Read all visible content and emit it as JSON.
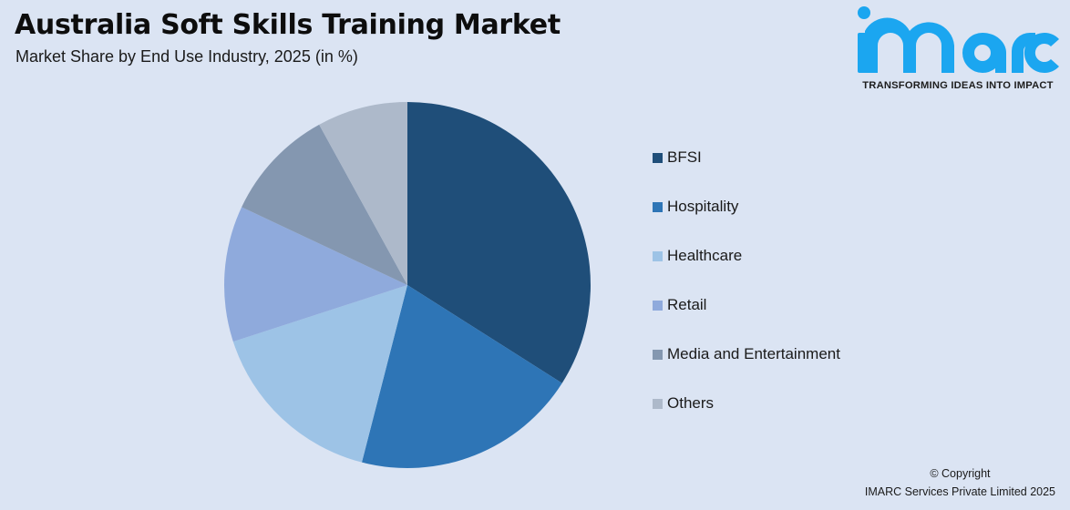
{
  "header": {
    "title": "Australia Soft Skills Training Market",
    "subtitle": "Market Share by End Use Industry, 2025 (in %)"
  },
  "logo": {
    "brand": "imarc",
    "tagline": "TRANSFORMING IDEAS INTO IMPACT",
    "color": "#1ba6f0"
  },
  "chart_data": {
    "type": "pie",
    "title": "Australia Soft Skills Training Market",
    "subtitle": "Market Share by End Use Industry, 2025 (in %)",
    "categories": [
      "BFSI",
      "Hospitality",
      "Healthcare",
      "Retail",
      "Media and Entertainment",
      "Others"
    ],
    "values": [
      34,
      20,
      16,
      12,
      10,
      8
    ],
    "colors": [
      "#1f4e79",
      "#2e75b6",
      "#9dc3e6",
      "#8faadc",
      "#8497b0",
      "#adb9ca"
    ],
    "start_angle_deg": 0,
    "direction": "clockwise",
    "legend_position": "right",
    "data_labels": false
  },
  "legend": {
    "items": [
      {
        "label": "BFSI",
        "color": "#1f4e79"
      },
      {
        "label": "Hospitality",
        "color": "#2e75b6"
      },
      {
        "label": "Healthcare",
        "color": "#9dc3e6"
      },
      {
        "label": "Retail",
        "color": "#8faadc"
      },
      {
        "label": "Media and Entertainment",
        "color": "#8497b0"
      },
      {
        "label": "Others",
        "color": "#adb9ca"
      }
    ]
  },
  "footer": {
    "copyright_line1": "© Copyright",
    "copyright_line2": "IMARC Services Private Limited 2025"
  }
}
